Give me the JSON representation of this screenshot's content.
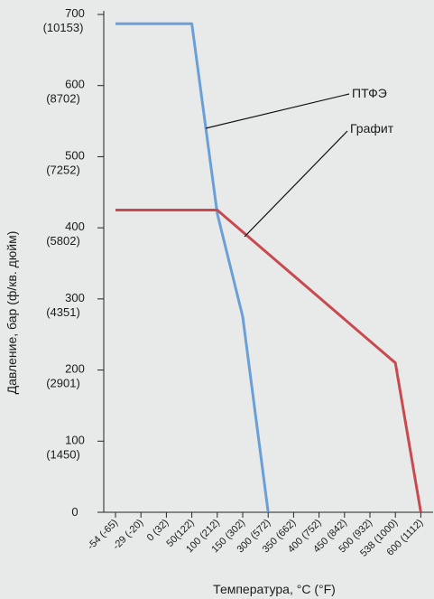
{
  "chart_data": {
    "type": "line",
    "xlabel": "Температура, °C (°F)",
    "ylabel": "Давление, бар (ф/кв. дюйм)",
    "x_ticks": [
      "-54 (-65)",
      "-29 (-20)",
      "0 (32)",
      "50(122)",
      "100 (212)",
      "150 (302)",
      "300 (572)",
      "350 (662)",
      "400 (752)",
      "450 (842)",
      "500 (932)",
      "538 (1000)",
      "600 (1112)"
    ],
    "y_ticks": [
      {
        "value": 0,
        "label": "0",
        "sub": ""
      },
      {
        "value": 100,
        "label": "100",
        "sub": "(1450)"
      },
      {
        "value": 200,
        "label": "200",
        "sub": "(2901)"
      },
      {
        "value": 300,
        "label": "300",
        "sub": "(4351)"
      },
      {
        "value": 400,
        "label": "400",
        "sub": "(5802)"
      },
      {
        "value": 500,
        "label": "500",
        "sub": "(7252)"
      },
      {
        "value": 600,
        "label": "600",
        "sub": "(8702)"
      },
      {
        "value": 700,
        "label": "700",
        "sub": "(10153)"
      }
    ],
    "ylim": [
      0,
      700
    ],
    "series": [
      {
        "name": "ПТФЭ",
        "color": "#6a9fd8",
        "points": [
          {
            "x": "-54 (-65)",
            "y": 687
          },
          {
            "x": "50(122)",
            "y": 687
          },
          {
            "x": "100 (212)",
            "y": 420
          },
          {
            "x": "150 (302)",
            "y": 275
          },
          {
            "x": "300 (572)",
            "y": 0
          }
        ]
      },
      {
        "name": "Графит",
        "color": "#c84a4f",
        "points": [
          {
            "x": "-54 (-65)",
            "y": 425
          },
          {
            "x": "100 (212)",
            "y": 425
          },
          {
            "x": "538 (1000)",
            "y": 210
          },
          {
            "x": "600 (1112)",
            "y": 0
          }
        ]
      }
    ],
    "grid": false
  }
}
